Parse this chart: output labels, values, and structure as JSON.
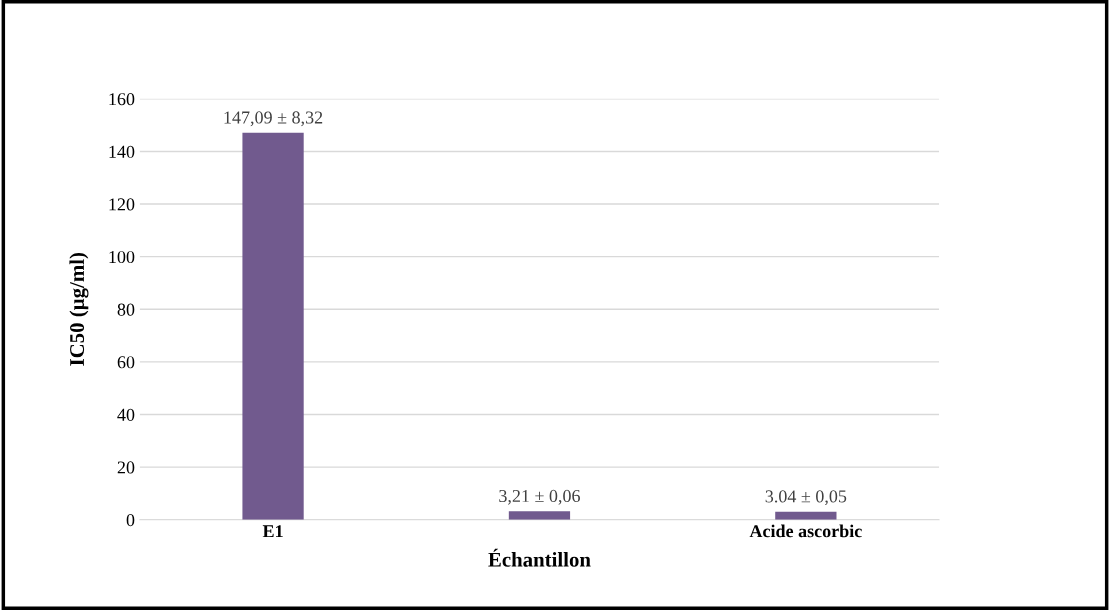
{
  "chart_data": {
    "type": "bar",
    "xlabel": "Échantillon",
    "ylabel": "IC50 (µg/ml)",
    "categories": [
      "E1",
      null,
      "Acide ascorbic"
    ],
    "values": [
      147.09,
      3.21,
      3.04
    ],
    "value_labels": [
      "147,09 ± 8,32",
      "3,21 ± 0,06",
      "3.04 ± 0,05"
    ],
    "color": "#715a8e",
    "ylim": [
      0,
      160
    ],
    "yticks": [
      0,
      20,
      40,
      60,
      80,
      100,
      120,
      140,
      160
    ],
    "grid": "y"
  }
}
